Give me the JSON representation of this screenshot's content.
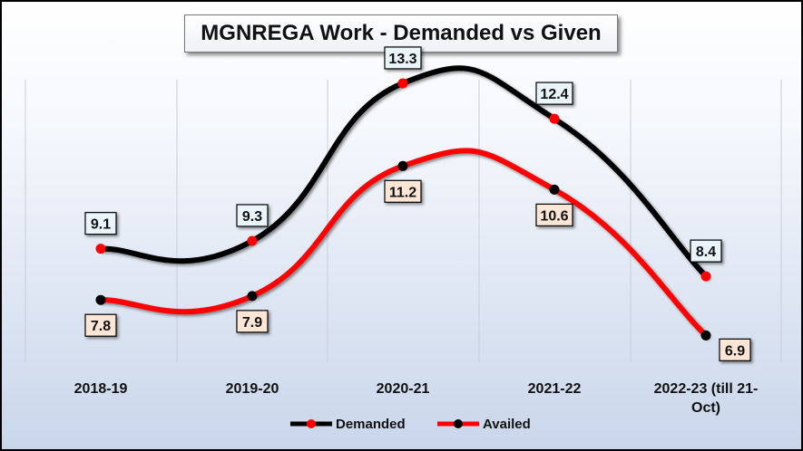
{
  "chart_data": {
    "type": "line",
    "title": "MGNREGA Work - Demanded vs Given",
    "categories": [
      "2018-19",
      "2019-20",
      "2020-21",
      "2021-22",
      "2022-23 (till 21-Oct)"
    ],
    "category_lines": [
      [
        "2018-19"
      ],
      [
        "2019-20"
      ],
      [
        "2020-21"
      ],
      [
        "2021-22"
      ],
      [
        "2022-23 (till 21-",
        "Oct)"
      ]
    ],
    "series": [
      {
        "name": "Demanded",
        "values": [
          9.1,
          9.3,
          13.3,
          12.4,
          8.4
        ],
        "line_color": "#000000",
        "marker_color": "#ff0000",
        "label_bg": "#eaf4fb",
        "label_text": [
          "9.1",
          "9.3",
          "13.3",
          "12.4",
          "8.4"
        ]
      },
      {
        "name": "Availed",
        "values": [
          7.8,
          7.9,
          11.2,
          10.6,
          6.9
        ],
        "line_color": "#ff0000",
        "marker_color": "#000000",
        "label_bg": "#fde6d6",
        "label_text": [
          "7.8",
          "7.9",
          "11.2",
          "10.6",
          "6.9"
        ]
      }
    ],
    "ylim": [
      5,
      15
    ],
    "grid": "vertical",
    "legend": "bottom",
    "xlabel": "",
    "ylabel": ""
  }
}
